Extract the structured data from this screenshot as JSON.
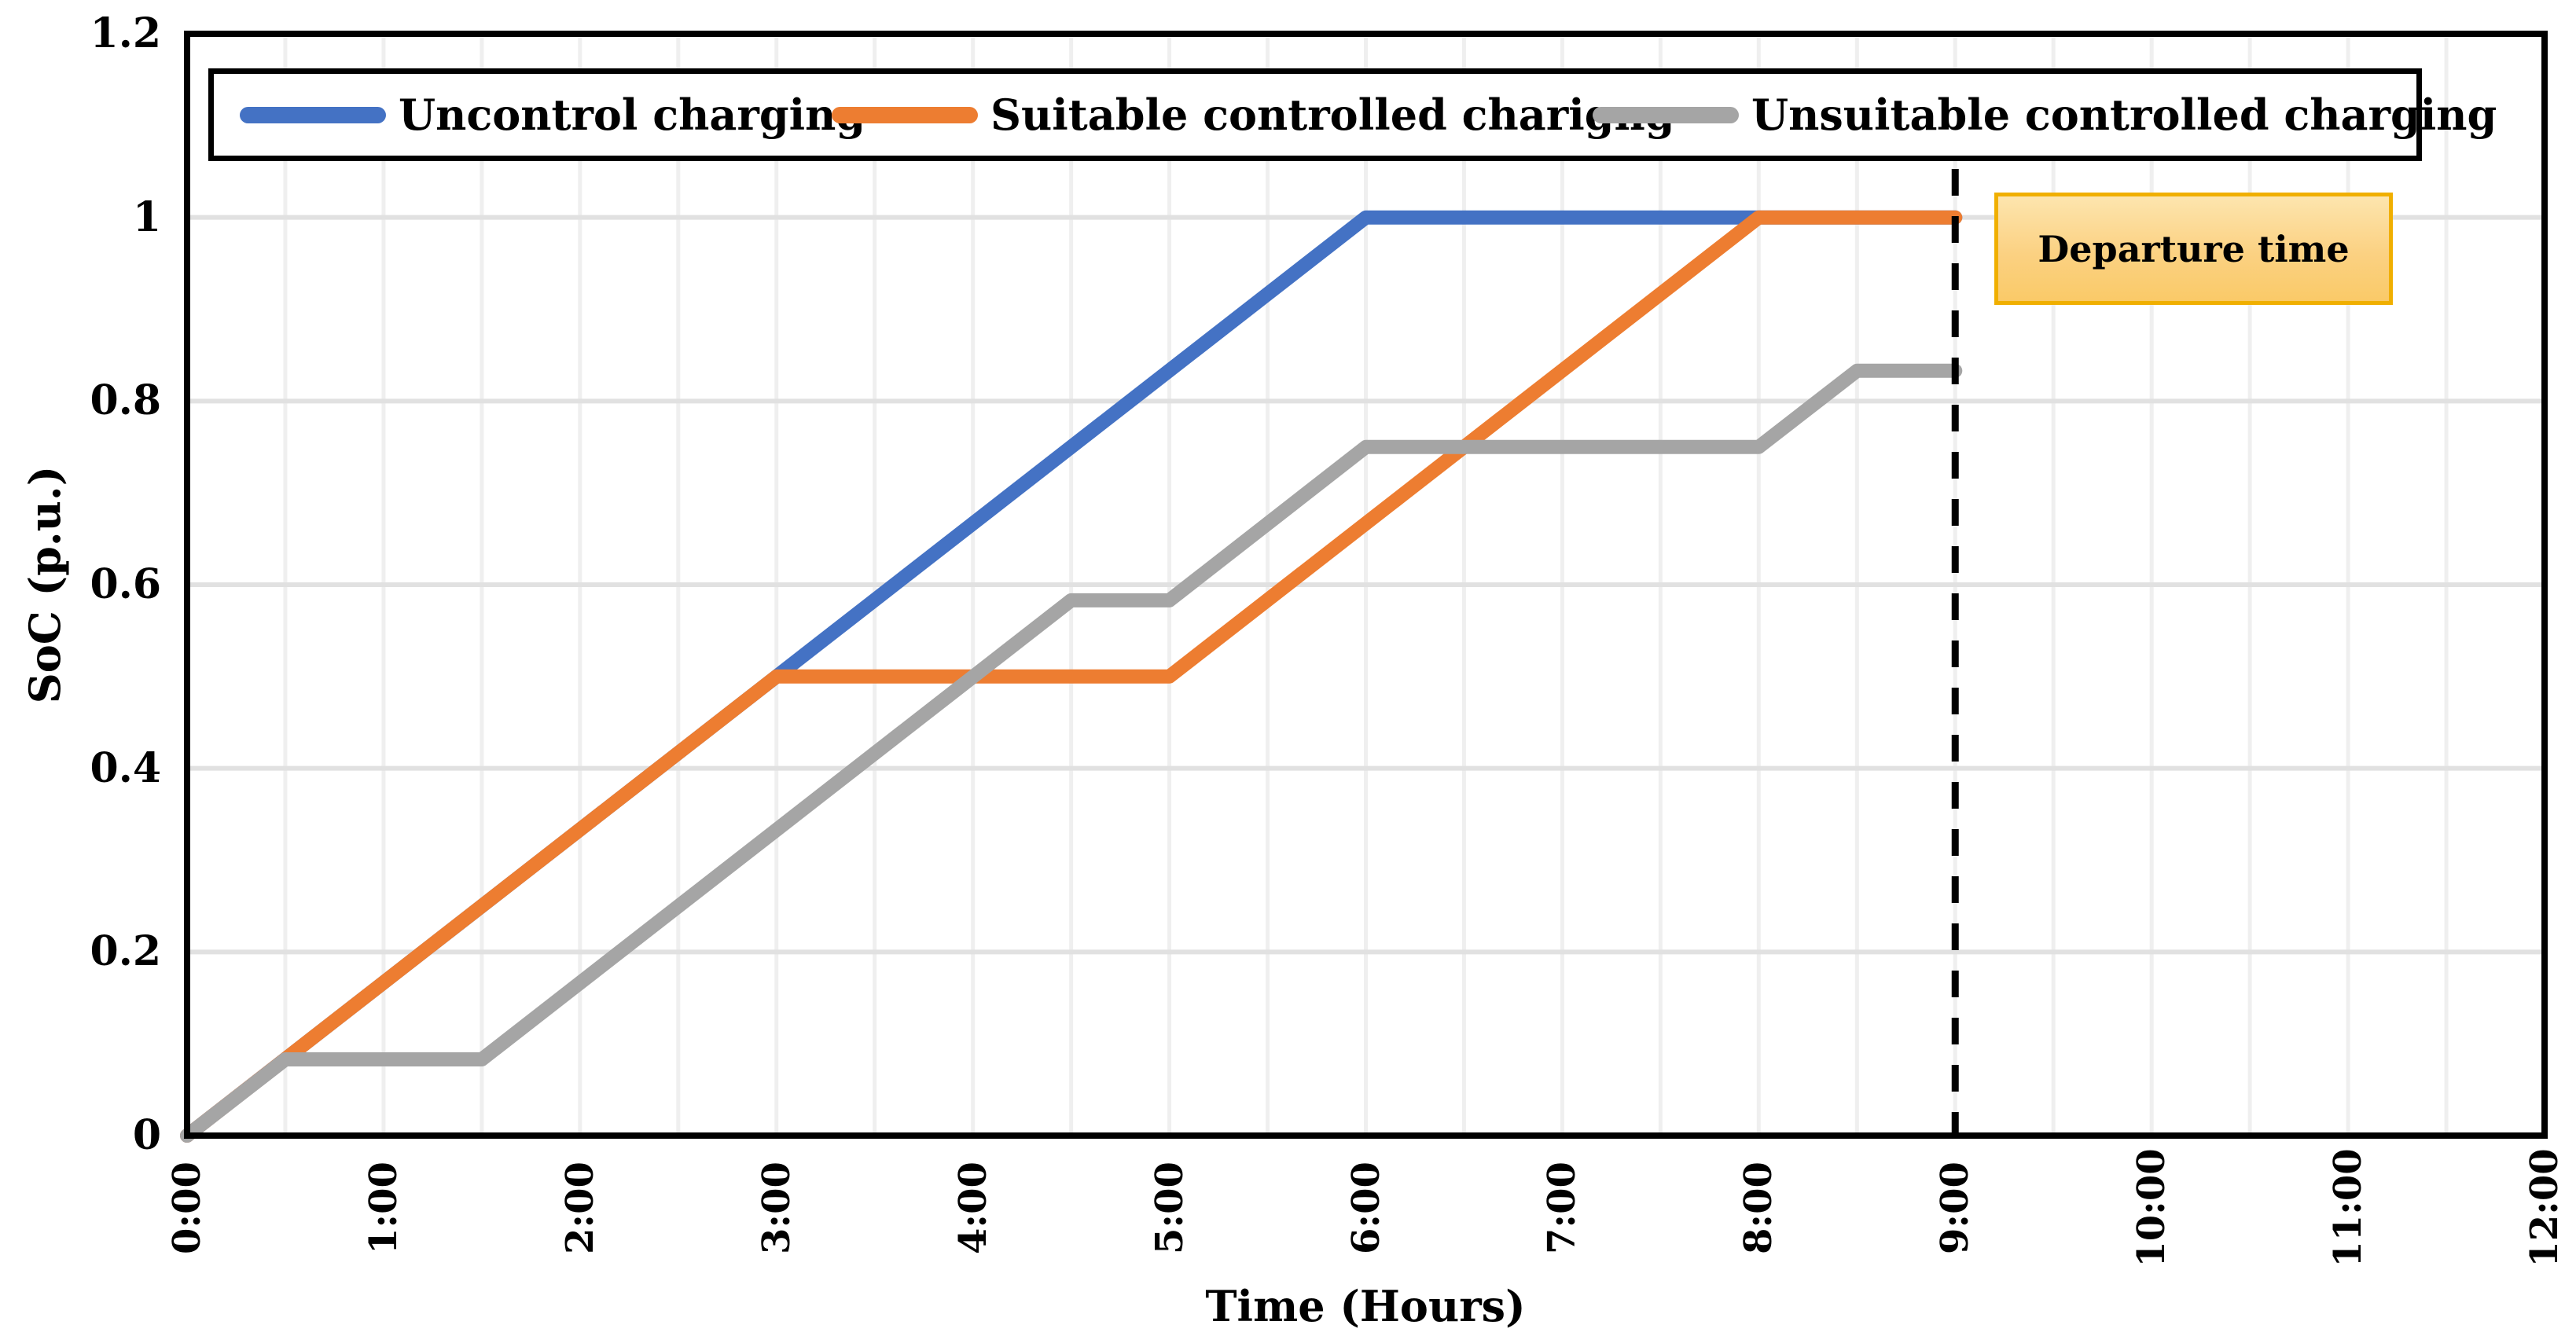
{
  "chart_data": {
    "type": "line",
    "title": "",
    "xlabel": "Time (Hours)",
    "ylabel": "SoC (p.u.)",
    "x_tick_labels": [
      "0:00",
      "1:00",
      "2:00",
      "3:00",
      "4:00",
      "5:00",
      "6:00",
      "7:00",
      "8:00",
      "9:00",
      "10:00",
      "11:00",
      "12:00"
    ],
    "x_range_hours": [
      0,
      12
    ],
    "y_tick_labels": [
      "0",
      "0.2",
      "0.4",
      "0.6",
      "0.8",
      "1",
      "1.2"
    ],
    "ylim": [
      0,
      1.2
    ],
    "grid": {
      "vertical_interval_hours": 0.5,
      "horizontal_interval": 0.2,
      "on": true
    },
    "legend_position": "top-inside",
    "series": [
      {
        "name": "Uncontrol charging",
        "color": "#4472C4",
        "points": [
          [
            0,
            0
          ],
          [
            6,
            1
          ],
          [
            9,
            1
          ]
        ]
      },
      {
        "name": "Suitable controlled charigng",
        "color": "#ED7D31",
        "points": [
          [
            0,
            0
          ],
          [
            3,
            0.5
          ],
          [
            5,
            0.5
          ],
          [
            8,
            1
          ],
          [
            9,
            1
          ]
        ]
      },
      {
        "name": "Unsuitable controlled charging",
        "color": "#A5A5A5",
        "points": [
          [
            0,
            0
          ],
          [
            0.5,
            0.083
          ],
          [
            1.5,
            0.083
          ],
          [
            4.5,
            0.583
          ],
          [
            5,
            0.583
          ],
          [
            6,
            0.75
          ],
          [
            8,
            0.75
          ],
          [
            8.5,
            0.833
          ],
          [
            9,
            0.833
          ]
        ]
      }
    ],
    "annotation": {
      "label": "Departure time",
      "x_hours": 9,
      "line_style": "dashed",
      "line_color": "#000000",
      "box_border_color": "#F0AF00",
      "box_fill_top": "#FDE5AE",
      "box_fill_bottom": "#FACA68"
    }
  }
}
